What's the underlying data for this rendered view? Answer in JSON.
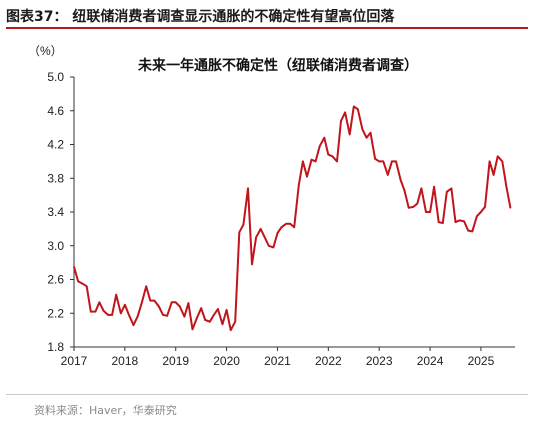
{
  "header": {
    "figure_caption": "图表37：  纽联储消费者调查显示通胀的不确定性有望高位回落"
  },
  "footer": {
    "source": "资料来源：Haver，华泰研究"
  },
  "colors": {
    "series_line": "#c0151b",
    "header_rule": "#b01c1c",
    "axis": "#333333"
  },
  "chart_data": {
    "type": "line",
    "title": "未来一年通胀不确定性（纽联储消费者调查）",
    "unit_label": "（%）",
    "xlabel": "",
    "ylabel": "",
    "ylim": [
      1.8,
      5.0
    ],
    "y_ticks": [
      "5.0",
      "4.6",
      "4.2",
      "3.8",
      "3.4",
      "3.0",
      "2.6",
      "2.2",
      "1.8"
    ],
    "x_ticks": [
      "2017",
      "2018",
      "2019",
      "2020",
      "2021",
      "2022",
      "2023",
      "2024",
      "2025"
    ],
    "xlim": [
      2017.0,
      2025.67
    ],
    "grid": false,
    "legend": "none",
    "series": [
      {
        "x": [
          2017.0,
          2017.08,
          2017.17,
          2017.25,
          2017.33,
          2017.42,
          2017.5,
          2017.58,
          2017.67,
          2017.75,
          2017.83,
          2017.92,
          2018.0,
          2018.08,
          2018.17,
          2018.25,
          2018.33,
          2018.42,
          2018.5,
          2018.58,
          2018.67,
          2018.75,
          2018.83,
          2018.92,
          2019.0,
          2019.08,
          2019.17,
          2019.25,
          2019.33,
          2019.42,
          2019.5,
          2019.58,
          2019.67,
          2019.75,
          2019.83,
          2019.92,
          2020.0,
          2020.08,
          2020.17,
          2020.25,
          2020.33,
          2020.42,
          2020.5,
          2020.58,
          2020.67,
          2020.75,
          2020.83,
          2020.92,
          2021.0,
          2021.08,
          2021.17,
          2021.25,
          2021.33,
          2021.42,
          2021.5,
          2021.58,
          2021.67,
          2021.75,
          2021.83,
          2021.92,
          2022.0,
          2022.08,
          2022.17,
          2022.25,
          2022.33,
          2022.42,
          2022.5,
          2022.58,
          2022.67,
          2022.75,
          2022.83,
          2022.92,
          2023.0,
          2023.08,
          2023.17,
          2023.25,
          2023.33,
          2023.42,
          2023.5,
          2023.58,
          2023.67,
          2023.75,
          2023.83,
          2023.92,
          2024.0,
          2024.08,
          2024.17,
          2024.25,
          2024.33,
          2024.42,
          2024.5,
          2024.58,
          2024.67,
          2024.75,
          2024.83,
          2024.92,
          2025.0,
          2025.08,
          2025.17,
          2025.25,
          2025.33,
          2025.42,
          2025.5,
          2025.58
        ],
        "values": [
          2.75,
          2.58,
          2.55,
          2.52,
          2.22,
          2.22,
          2.33,
          2.23,
          2.18,
          2.18,
          2.42,
          2.2,
          2.3,
          2.18,
          2.06,
          2.16,
          2.32,
          2.52,
          2.35,
          2.35,
          2.28,
          2.18,
          2.17,
          2.33,
          2.33,
          2.28,
          2.16,
          2.32,
          2.01,
          2.15,
          2.26,
          2.12,
          2.1,
          2.18,
          2.25,
          2.07,
          2.24,
          2.0,
          2.1,
          3.16,
          3.25,
          3.68,
          2.78,
          3.1,
          3.2,
          3.1,
          3.0,
          2.98,
          3.15,
          3.22,
          3.26,
          3.26,
          3.22,
          3.72,
          4.0,
          3.82,
          4.02,
          4.0,
          4.18,
          4.28,
          4.08,
          4.06,
          4.0,
          4.48,
          4.58,
          4.32,
          4.65,
          4.62,
          4.38,
          4.28,
          4.34,
          4.03,
          4.0,
          4.0,
          3.84,
          4.0,
          4.0,
          3.78,
          3.65,
          3.45,
          3.46,
          3.5,
          3.68,
          3.4,
          3.4,
          3.7,
          3.28,
          3.27,
          3.64,
          3.68,
          3.28,
          3.3,
          3.29,
          3.18,
          3.17,
          3.35,
          3.4,
          3.46,
          4.0,
          3.84,
          4.06,
          4.0,
          3.7,
          3.45
        ]
      }
    ]
  }
}
